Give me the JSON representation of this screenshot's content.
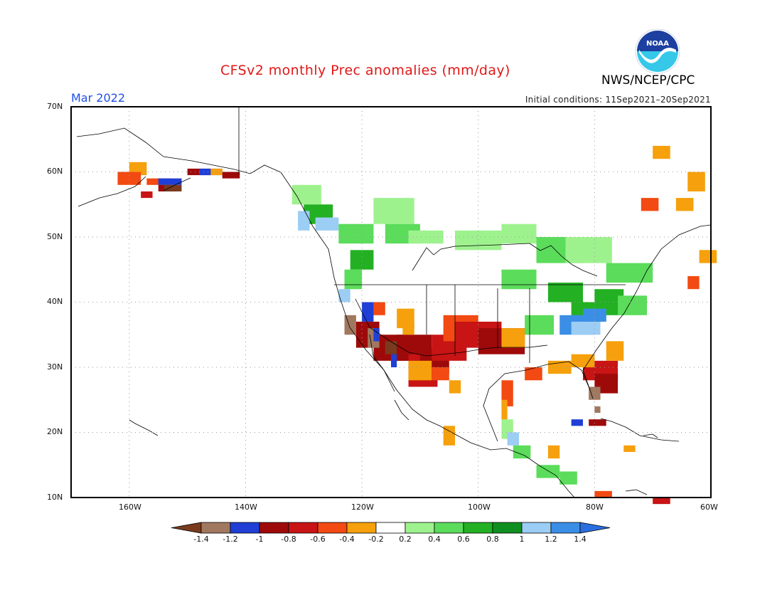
{
  "title": "CFSv2 monthly Prec anomalies (mm/day)",
  "agency": "NWS/NCEP/CPC",
  "logo_text": "NOAA",
  "valid_month": "Mar 2022",
  "initial_conditions": "Initial conditions: 11Sep2021–20Sep2021",
  "map": {
    "lon_range": [
      -170,
      -60
    ],
    "lat_range": [
      10,
      70
    ],
    "lat_ticks": [
      "70N",
      "60N",
      "50N",
      "40N",
      "30N",
      "20N",
      "10N"
    ],
    "lon_ticks": [
      "160W",
      "140W",
      "120W",
      "100W",
      "80W",
      "60W"
    ]
  },
  "colorbar": {
    "labels": [
      "-1.4",
      "-1.2",
      "-1",
      "-0.8",
      "-0.6",
      "-0.4",
      "-0.2",
      "0.2",
      "0.4",
      "0.6",
      "0.8",
      "1",
      "1.2",
      "1.4"
    ],
    "colors": [
      "#7a3a1e",
      "#a07860",
      "#1f3fd6",
      "#9e0a0a",
      "#c81414",
      "#f24a12",
      "#f5a00c",
      "#ffffff",
      "#9ef28e",
      "#5bdc5b",
      "#23b023",
      "#0f8f20",
      "#9ccdf4",
      "#3b8ee6",
      "#2a6ee0"
    ]
  },
  "colors": {
    "title": "#e01818",
    "month": "#1f4ee8"
  }
}
